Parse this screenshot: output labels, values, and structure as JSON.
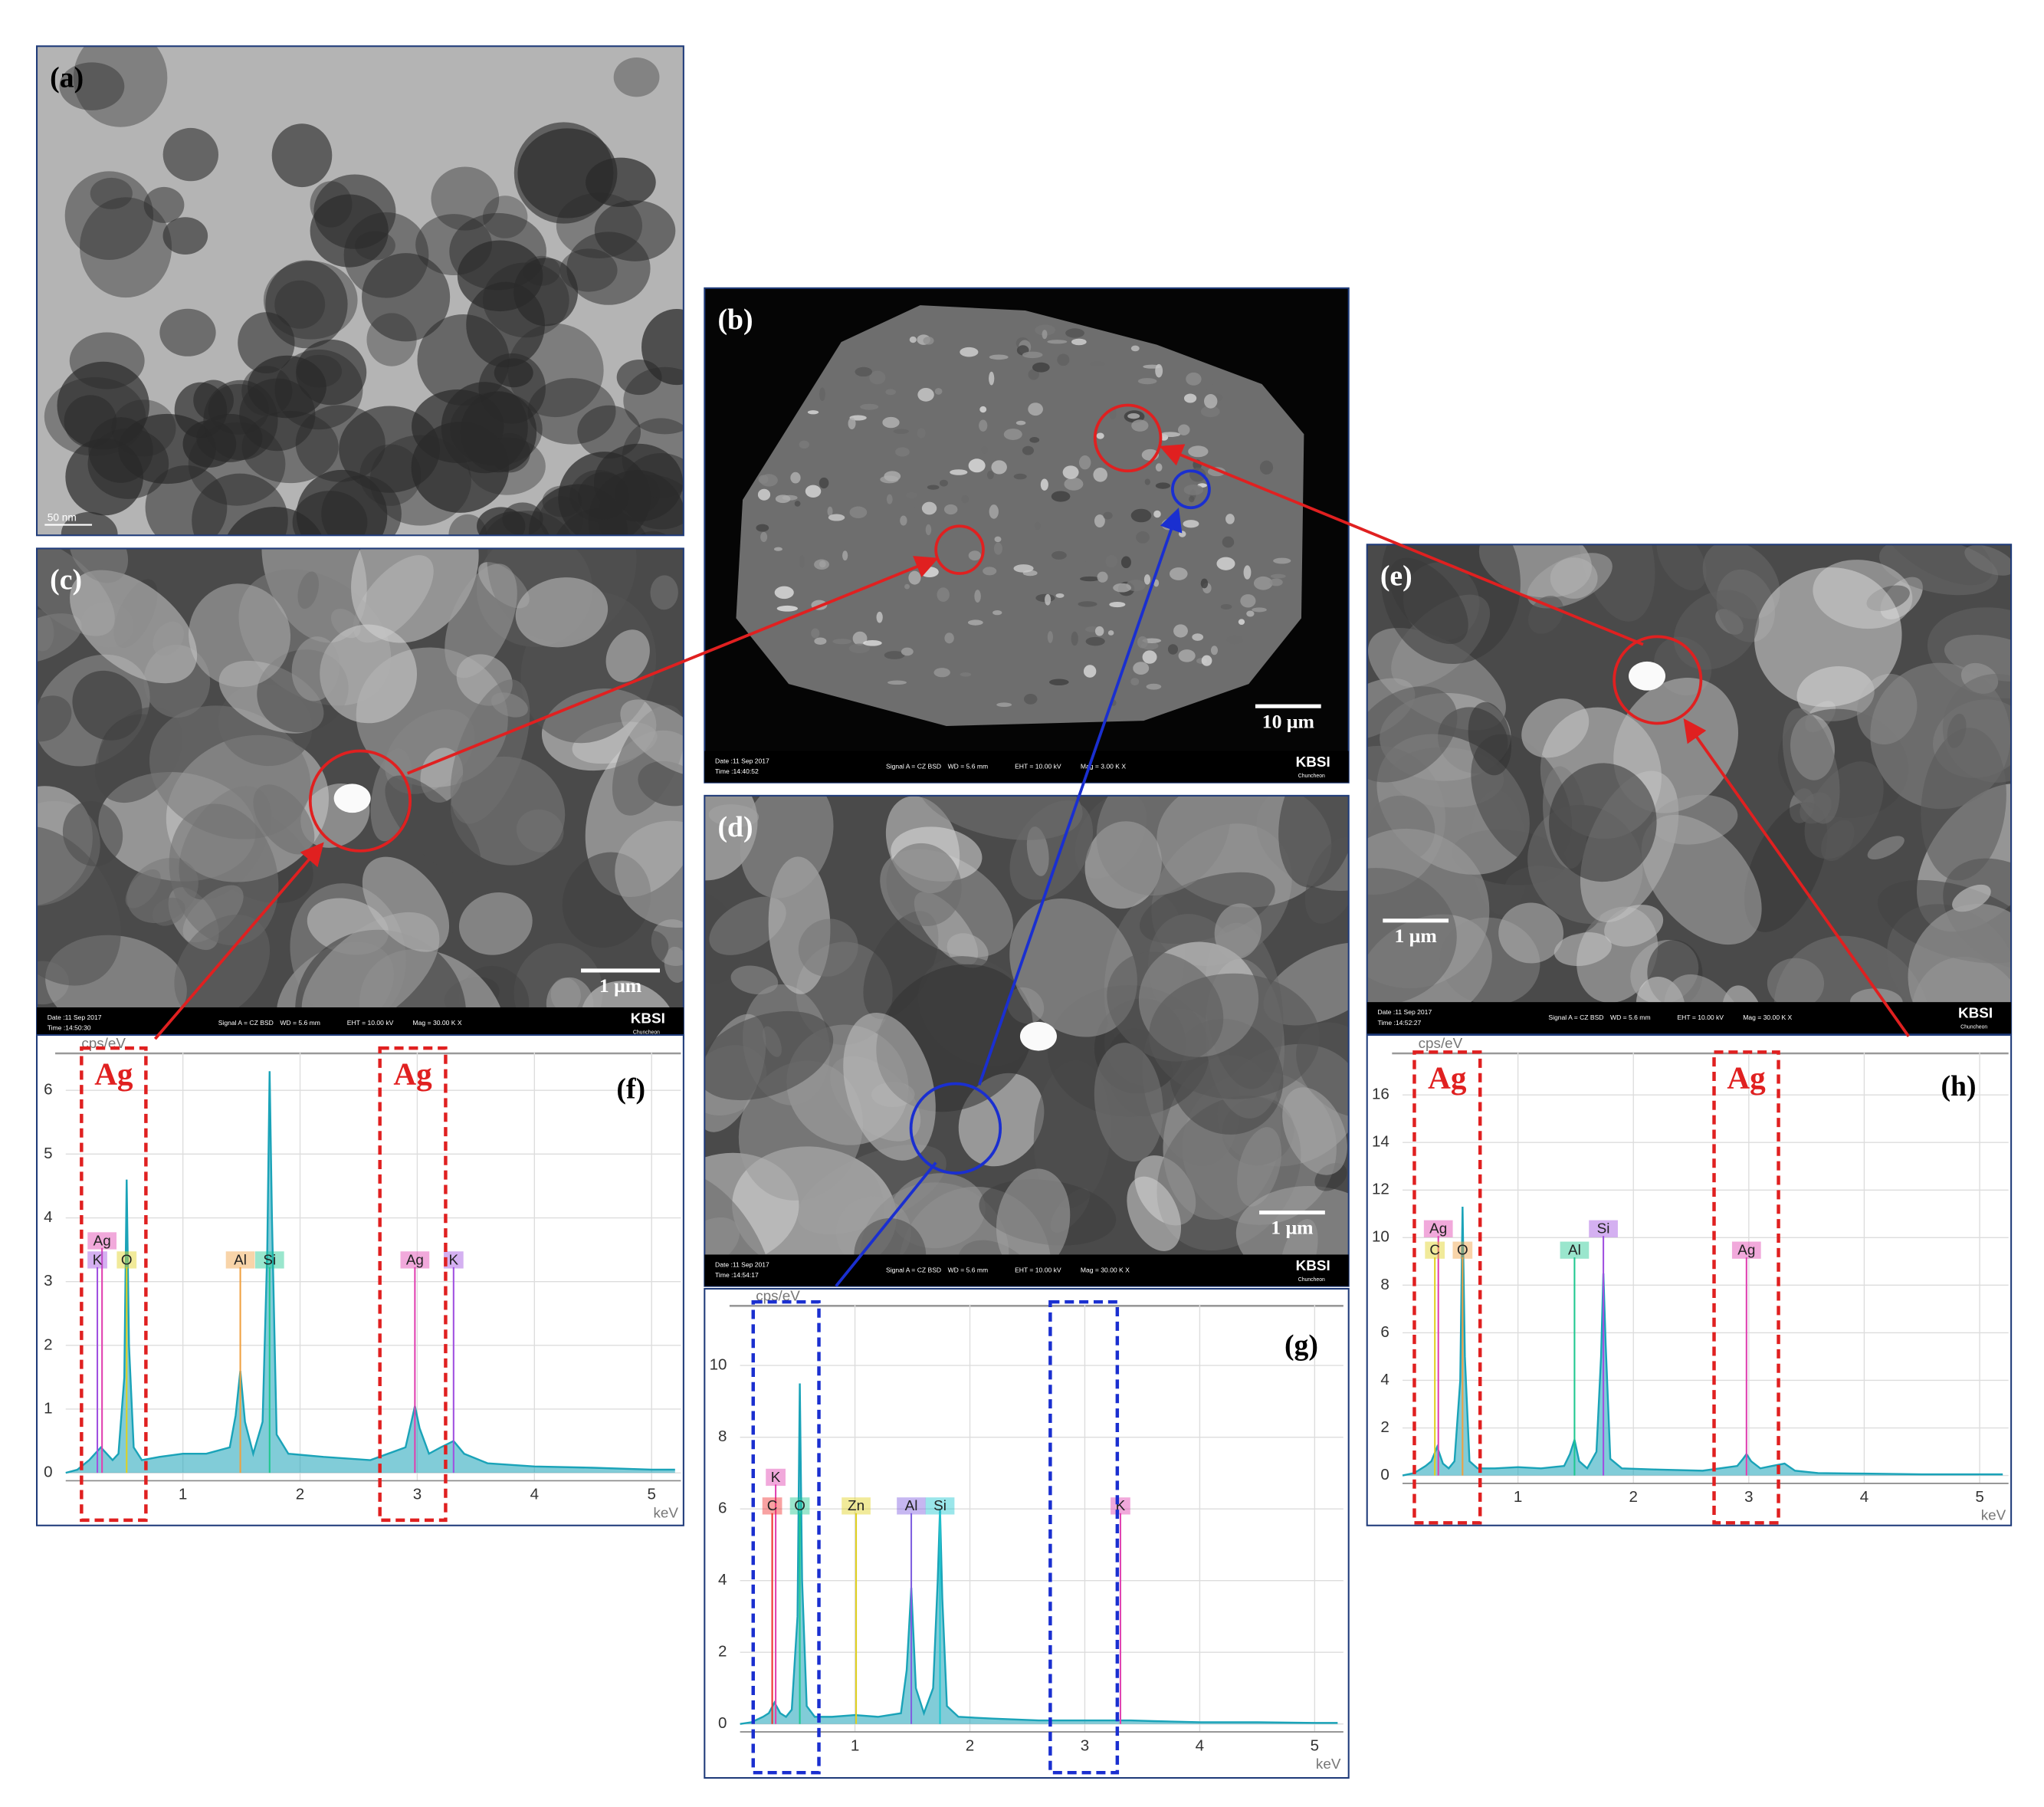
{
  "panels": [
    {
      "label": "(a)",
      "scale_bar": "50 nm"
    },
    {
      "label": "(b)",
      "scale_bar": "10 μm",
      "info": [
        "Date :11 Sep 2017",
        "Time :14:40:52",
        "Signal A = CZ BSD",
        "WD = 5.6 mm",
        "EHT = 10.00 kV",
        "Mag = 3.00 K X",
        "KBSI",
        "Chuncheon"
      ]
    },
    {
      "label": "(c)",
      "scale_bar": "1 μm",
      "info": [
        "Date :11 Sep 2017",
        "Time :14:50:30",
        "Signal A = CZ BSD",
        "WD = 5.6 mm",
        "EHT = 10.00 kV",
        "Mag = 30.00 K X",
        "KBSI",
        "Chuncheon"
      ]
    },
    {
      "label": "(d)",
      "scale_bar": "1 μm",
      "info": [
        "Date :11 Sep 2017",
        "Time :14:54:17",
        "Signal A = CZ BSD",
        "WD = 5.6 mm",
        "EHT = 10.00 kV",
        "Mag = 30.00 K X",
        "KBSI",
        "Chuncheon"
      ]
    },
    {
      "label": "(e)",
      "scale_bar": "1 μm",
      "info": [
        "Date :11 Sep 2017",
        "Time :14:52:27",
        "Signal A = CZ BSD",
        "WD = 5.6 mm",
        "EHT = 10.00 kV",
        "Mag = 30.00 K X",
        "KBSI",
        "Chuncheon"
      ]
    }
  ],
  "chart_data": [
    {
      "type": "line",
      "label": "(f)",
      "y_axis_label": "cps/eV",
      "x_axis_label": "keV",
      "xlim": [
        0,
        5.25
      ],
      "ylim": [
        0,
        6.6
      ],
      "xticks": [
        1,
        2,
        3,
        4,
        5
      ],
      "yticks": [
        0,
        1,
        2,
        3,
        4,
        5,
        6
      ],
      "grid": true,
      "highlight_color": "#e02020",
      "highlight_labels": [
        "Ag",
        "Ag"
      ],
      "series": [
        {
          "color": "#1aa3b8",
          "x": [
            0,
            0.1,
            0.2,
            0.25,
            0.3,
            0.35,
            0.4,
            0.45,
            0.5,
            0.52,
            0.54,
            0.58,
            0.65,
            0.8,
            1.0,
            1.2,
            1.4,
            1.45,
            1.49,
            1.53,
            1.6,
            1.68,
            1.72,
            1.74,
            1.76,
            1.8,
            1.9,
            2.2,
            2.6,
            2.9,
            2.95,
            2.98,
            3.02,
            3.1,
            3.2,
            3.31,
            3.4,
            3.6,
            4.0,
            4.5,
            5.0,
            5.2
          ],
          "values": [
            0,
            0.05,
            0.2,
            0.3,
            0.4,
            0.3,
            0.2,
            0.3,
            1.5,
            4.6,
            2.0,
            0.4,
            0.2,
            0.25,
            0.3,
            0.3,
            0.4,
            0.9,
            1.6,
            0.8,
            0.3,
            0.8,
            3.5,
            6.3,
            4.0,
            0.6,
            0.3,
            0.25,
            0.2,
            0.4,
            0.8,
            1.05,
            0.7,
            0.3,
            0.4,
            0.5,
            0.3,
            0.15,
            0.1,
            0.08,
            0.05,
            0.05
          ]
        }
      ],
      "markers": [
        {
          "label": "Ag",
          "x": 0.31,
          "y": 3.65,
          "color": "#e040b0"
        },
        {
          "label": "K",
          "x": 0.27,
          "y": 3.35,
          "color": "#a050e0"
        },
        {
          "label": "O",
          "x": 0.52,
          "y": 3.35,
          "color": "#e0d020"
        },
        {
          "label": "Al",
          "x": 1.49,
          "y": 3.35,
          "color": "#f0a040"
        },
        {
          "label": "Si",
          "x": 1.74,
          "y": 3.35,
          "color": "#20c890"
        },
        {
          "label": "Ag",
          "x": 2.98,
          "y": 3.35,
          "color": "#e040b0"
        },
        {
          "label": "K",
          "x": 3.31,
          "y": 3.35,
          "color": "#a050e0"
        }
      ]
    },
    {
      "type": "line",
      "label": "(g)",
      "y_axis_label": "cps/eV",
      "x_axis_label": "keV",
      "xlim": [
        0,
        5.25
      ],
      "ylim": [
        0,
        11.7
      ],
      "xticks": [
        1,
        2,
        3,
        4,
        5
      ],
      "yticks": [
        0,
        2,
        4,
        6,
        8,
        10
      ],
      "grid": true,
      "highlight_color": "#1a2fd0",
      "series": [
        {
          "color": "#1aa3b8",
          "x": [
            0,
            0.1,
            0.2,
            0.25,
            0.3,
            0.35,
            0.4,
            0.45,
            0.5,
            0.52,
            0.54,
            0.58,
            0.65,
            0.8,
            1.0,
            1.2,
            1.4,
            1.45,
            1.49,
            1.53,
            1.6,
            1.68,
            1.72,
            1.74,
            1.76,
            1.8,
            1.9,
            2.2,
            2.6,
            2.9,
            2.95,
            2.98,
            3.02,
            3.1,
            3.2,
            3.31,
            3.4,
            3.6,
            4.0,
            4.5,
            5.0,
            5.2
          ],
          "values": [
            0,
            0.05,
            0.2,
            0.3,
            0.6,
            0.3,
            0.2,
            0.4,
            3.0,
            9.5,
            4.0,
            0.5,
            0.2,
            0.2,
            0.25,
            0.2,
            0.3,
            1.5,
            3.8,
            1.0,
            0.3,
            1.0,
            4.0,
            6.0,
            3.5,
            0.5,
            0.2,
            0.15,
            0.1,
            0.1,
            0.1,
            0.1,
            0.1,
            0.1,
            0.1,
            0.1,
            0.1,
            0.08,
            0.05,
            0.05,
            0.03,
            0.03
          ]
        }
      ],
      "markers": [
        {
          "label": "K",
          "x": 0.31,
          "y": 6.9,
          "color": "#e040b0"
        },
        {
          "label": "C",
          "x": 0.28,
          "y": 6.1,
          "color": "#f03030"
        },
        {
          "label": "O",
          "x": 0.52,
          "y": 6.1,
          "color": "#20c890"
        },
        {
          "label": "Zn",
          "x": 1.01,
          "y": 6.1,
          "color": "#e0d020"
        },
        {
          "label": "Al",
          "x": 1.49,
          "y": 6.1,
          "color": "#8060e0"
        },
        {
          "label": "Si",
          "x": 1.74,
          "y": 6.1,
          "color": "#20c8d0"
        },
        {
          "label": "K",
          "x": 3.31,
          "y": 6.1,
          "color": "#e040b0"
        }
      ]
    },
    {
      "type": "line",
      "label": "(h)",
      "y_axis_label": "cps/eV",
      "x_axis_label": "keV",
      "xlim": [
        0,
        5.25
      ],
      "ylim": [
        0,
        17.8
      ],
      "xticks": [
        1,
        2,
        3,
        4,
        5
      ],
      "yticks": [
        0,
        2,
        4,
        6,
        8,
        10,
        12,
        14,
        16
      ],
      "grid": true,
      "highlight_color": "#e02020",
      "highlight_labels": [
        "Ag",
        "Ag"
      ],
      "series": [
        {
          "color": "#1aa3b8",
          "x": [
            0,
            0.1,
            0.2,
            0.25,
            0.3,
            0.35,
            0.4,
            0.45,
            0.5,
            0.52,
            0.54,
            0.58,
            0.65,
            0.8,
            1.0,
            1.2,
            1.4,
            1.45,
            1.49,
            1.53,
            1.6,
            1.68,
            1.72,
            1.74,
            1.76,
            1.8,
            1.9,
            2.2,
            2.6,
            2.9,
            2.95,
            2.98,
            3.02,
            3.1,
            3.2,
            3.31,
            3.4,
            3.6,
            4.0,
            4.5,
            5.0,
            5.2
          ],
          "values": [
            0,
            0.1,
            0.4,
            0.6,
            1.2,
            0.5,
            0.3,
            0.6,
            4.0,
            11.3,
            5.0,
            0.6,
            0.3,
            0.3,
            0.35,
            0.3,
            0.4,
            0.9,
            1.5,
            0.6,
            0.3,
            1.0,
            5.0,
            8.5,
            5.5,
            0.7,
            0.3,
            0.25,
            0.2,
            0.4,
            0.7,
            0.9,
            0.6,
            0.3,
            0.4,
            0.5,
            0.2,
            0.1,
            0.08,
            0.05,
            0.05,
            0.05
          ]
        }
      ],
      "markers": [
        {
          "label": "Ag",
          "x": 0.31,
          "y": 10.4,
          "color": "#e040b0"
        },
        {
          "label": "C",
          "x": 0.28,
          "y": 9.5,
          "color": "#e0d020"
        },
        {
          "label": "O",
          "x": 0.52,
          "y": 9.5,
          "color": "#f0a040"
        },
        {
          "label": "Al",
          "x": 1.49,
          "y": 9.5,
          "color": "#20c890"
        },
        {
          "label": "Si",
          "x": 1.74,
          "y": 10.4,
          "color": "#a050e0"
        },
        {
          "label": "Ag",
          "x": 2.98,
          "y": 9.5,
          "color": "#e040b0"
        }
      ]
    }
  ]
}
